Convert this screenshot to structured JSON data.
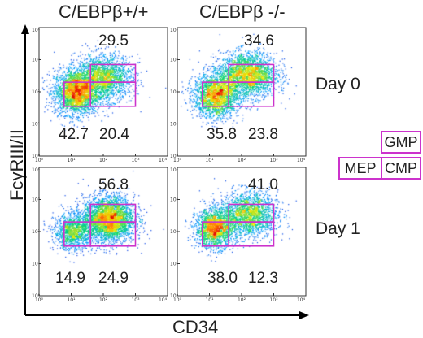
{
  "columns": [
    "C/EBPβ+/+",
    "C/EBPβ -/-"
  ],
  "rows": [
    "Day 0",
    "Day 1"
  ],
  "legend": {
    "gmp": "GMP",
    "mep": "MEP",
    "cmp": "CMP"
  },
  "colors": {
    "gate": "#cc33cc",
    "axis": "#000000"
  },
  "chart_data": {
    "type": "scatter",
    "subtype": "flow-cytometry-density",
    "xlabel": "CD34",
    "ylabel": "FcγRIII/II",
    "x_scale": "log",
    "y_scale": "log",
    "xlim": [
      1,
      10000
    ],
    "ylim": [
      1,
      10000
    ],
    "x_ticks": [
      "10⁰",
      "10¹",
      "10²",
      "10³",
      "10⁴"
    ],
    "y_ticks": [
      "10⁰",
      "10¹",
      "10²",
      "10³",
      "10⁴"
    ],
    "panels": [
      {
        "column": "C/EBPβ+/+",
        "row": "Day 0",
        "gates": {
          "GMP": "29.5",
          "MEP": "42.7",
          "CMP": "20.4"
        }
      },
      {
        "column": "C/EBPβ -/-",
        "row": "Day 0",
        "gates": {
          "GMP": "34.6",
          "MEP": "35.8",
          "CMP": "23.8"
        }
      },
      {
        "column": "C/EBPβ+/+",
        "row": "Day 1",
        "gates": {
          "GMP": "56.8",
          "MEP": "14.9",
          "CMP": "24.9"
        }
      },
      {
        "column": "C/EBPβ -/-",
        "row": "Day 1",
        "gates": {
          "GMP": "41.0",
          "MEP": "38.0",
          "CMP": "12.3"
        }
      }
    ]
  }
}
